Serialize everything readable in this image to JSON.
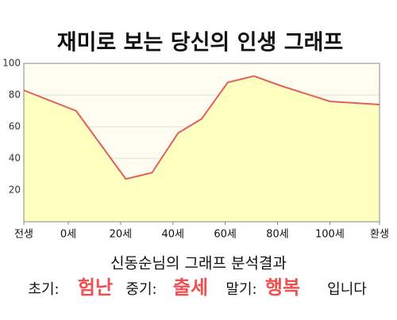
{
  "chart_data": {
    "type": "area",
    "title": "재미로 보는 당신의 인생 그래프",
    "x": [
      -17,
      3,
      22,
      32,
      42,
      51,
      61,
      71,
      81,
      100,
      119
    ],
    "values": [
      83,
      70,
      27,
      31,
      56,
      65,
      88,
      92,
      86,
      76,
      74
    ],
    "xlim": [
      -17,
      119
    ],
    "ylim": [
      0,
      100
    ],
    "xticks": [
      {
        "value": -17,
        "label": "전생"
      },
      {
        "value": 0,
        "label": "0세"
      },
      {
        "value": 20,
        "label": "20세"
      },
      {
        "value": 40,
        "label": "40세"
      },
      {
        "value": 60,
        "label": "60세"
      },
      {
        "value": 80,
        "label": "80세"
      },
      {
        "value": 100,
        "label": "100세"
      },
      {
        "value": 119,
        "label": "환생"
      }
    ],
    "yticks": [
      20,
      40,
      60,
      80,
      100
    ],
    "color": "#e06060",
    "fill_color": "#ffffc0",
    "grid": true
  },
  "result": {
    "heading": "신동순님의 그래프 분석결과",
    "items": [
      {
        "label": "초기:",
        "value": "험난"
      },
      {
        "label": "중기:",
        "value": "출세"
      },
      {
        "label": "말기:",
        "value": "행복"
      }
    ],
    "suffix": "입니다"
  }
}
